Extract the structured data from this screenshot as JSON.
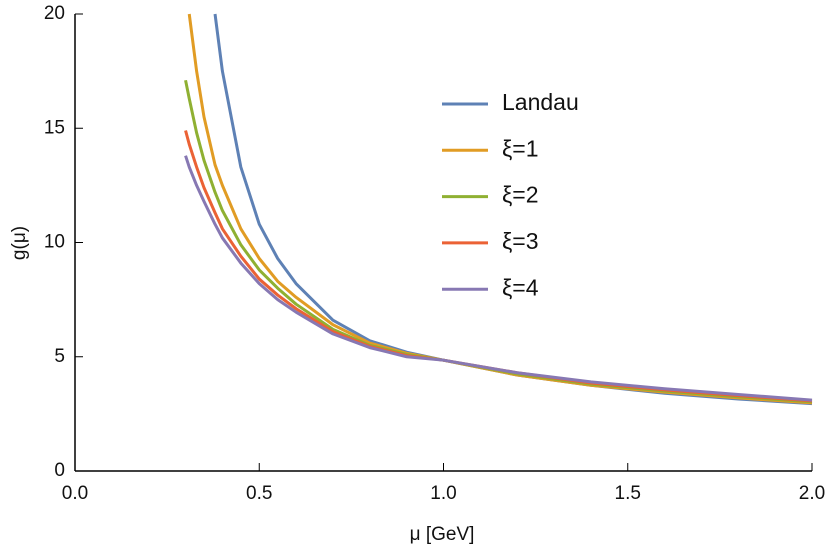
{
  "chart_data": {
    "type": "line",
    "xlabel": "μ [GeV]",
    "ylabel": "g(μ)",
    "x": [
      0.3,
      0.31,
      0.33,
      0.35,
      0.38,
      0.4,
      0.45,
      0.5,
      0.55,
      0.6,
      0.7,
      0.8,
      0.9,
      1.0,
      1.2,
      1.4,
      1.6,
      1.8,
      2.0
    ],
    "series": [
      {
        "name": "Landau",
        "color": "#5e81b5",
        "values": [
          null,
          null,
          null,
          null,
          20,
          17.5,
          13.3,
          10.8,
          9.3,
          8.2,
          6.6,
          5.7,
          5.2,
          4.85,
          4.2,
          3.75,
          3.4,
          3.15,
          2.95
        ]
      },
      {
        "name": "ξ=1",
        "color": "#e19c24",
        "values": [
          null,
          20,
          17.5,
          15.5,
          13.4,
          12.5,
          10.6,
          9.3,
          8.3,
          7.6,
          6.4,
          5.6,
          5.15,
          4.85,
          4.2,
          3.75,
          3.45,
          3.2,
          2.98
        ]
      },
      {
        "name": "ξ=2",
        "color": "#8fb032",
        "values": [
          17.1,
          16.3,
          14.8,
          13.6,
          12.2,
          11.4,
          9.9,
          8.8,
          8.0,
          7.3,
          6.2,
          5.5,
          5.1,
          4.85,
          4.25,
          3.8,
          3.5,
          3.25,
          3.03
        ]
      },
      {
        "name": "ξ=3",
        "color": "#eb6235",
        "values": [
          14.9,
          14.3,
          13.3,
          12.4,
          11.3,
          10.6,
          9.4,
          8.4,
          7.7,
          7.1,
          6.1,
          5.45,
          5.05,
          4.85,
          4.3,
          3.85,
          3.55,
          3.3,
          3.07
        ]
      },
      {
        "name": "ξ=4",
        "color": "#8778b3",
        "values": [
          13.8,
          13.3,
          12.5,
          11.8,
          10.8,
          10.2,
          9.1,
          8.2,
          7.5,
          6.95,
          6.0,
          5.4,
          5.0,
          4.85,
          4.3,
          3.9,
          3.6,
          3.35,
          3.1
        ]
      }
    ],
    "xlim": [
      0,
      2
    ],
    "ylim": [
      0,
      20
    ],
    "xticks": [
      {
        "value": 0,
        "label": "0.0"
      },
      0.5,
      {
        "value": 1,
        "label": "1.0"
      },
      1.5,
      {
        "value": 2,
        "label": "2.0"
      }
    ],
    "yticks": [
      0,
      5,
      10,
      15,
      20
    ],
    "grid": false,
    "legend": "top"
  }
}
